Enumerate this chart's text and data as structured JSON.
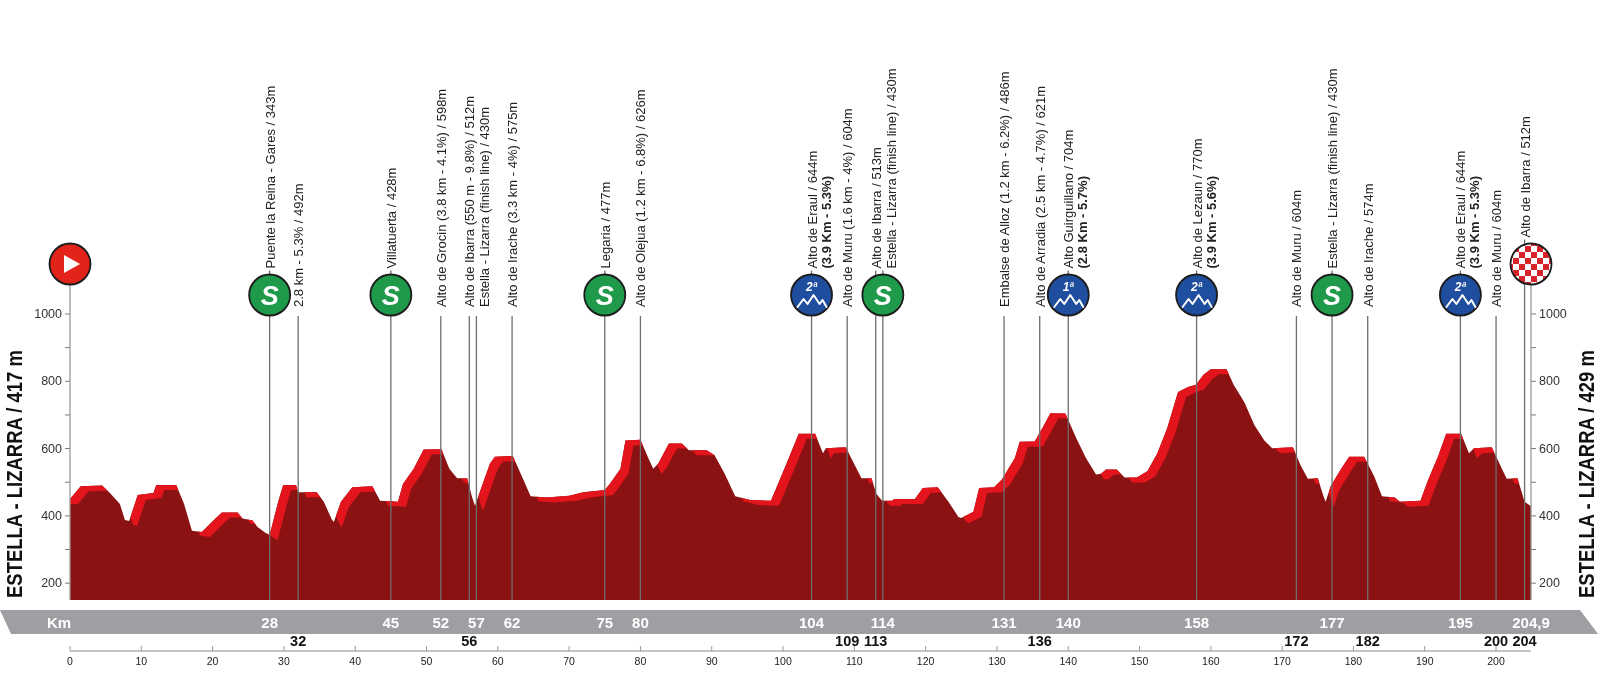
{
  "chart_data": {
    "type": "area",
    "color": "#8b1212",
    "x": [
      0,
      1.5,
      4.5,
      5.6,
      7,
      7.7,
      8.3,
      9.5,
      11.7,
      12.1,
      14.9,
      16,
      17.1,
      18.5,
      20.3,
      21.3,
      23.5,
      24.2,
      25.6,
      26.3,
      27.4,
      28,
      29.2,
      29.9,
      31.7,
      32,
      34.6,
      35.6,
      36.7,
      37,
      38,
      39.6,
      42.4,
      43.5,
      46,
      46.7,
      48.2,
      49.6,
      52.1,
      53.2,
      54.3,
      55.7,
      56.4,
      56.8,
      57.8,
      58.9,
      59.6,
      62.1,
      63.2,
      64.6,
      66.8,
      70,
      72,
      75,
      75.7,
      77.2,
      77.9,
      80,
      81.1,
      81.8,
      82.5,
      84,
      85.8,
      86.8,
      89.3,
      90.4,
      91.8,
      93.3,
      95.4,
      98.3,
      99,
      100.8,
      102.2,
      104.5,
      105.6,
      106,
      108.8,
      110.3,
      111,
      112.4,
      113.1,
      113.9,
      115.3,
      115.6,
      118.5,
      119.6,
      121.7,
      123.2,
      124.6,
      125,
      126.7,
      127.5,
      129.6,
      130.7,
      132.5,
      133.2,
      135.3,
      136.4,
      137.5,
      139.6,
      141.1,
      142.5,
      143.9,
      144.6,
      145.3,
      146.8,
      147.9,
      149.6,
      151.1,
      152.5,
      153.9,
      155.4,
      156.8,
      157.9,
      159,
      160,
      162.2,
      163.2,
      164.7,
      166.1,
      167.5,
      168.6,
      171.5,
      172.6,
      173.6,
      175,
      175.8,
      176.1,
      176.8,
      178.3,
      179.4,
      181.5,
      182.9,
      184,
      185.8,
      186.5,
      189.4,
      190.4,
      191.9,
      193,
      195.1,
      196.2,
      196.9,
      199.4,
      200.8,
      201.5,
      203,
      204,
      204.9
    ],
    "values": [
      450,
      488,
      490,
      468,
      435,
      388,
      385,
      462,
      468,
      492,
      492,
      435,
      356,
      352,
      390,
      410,
      410,
      392,
      386,
      367,
      350,
      343,
      442,
      492,
      492,
      470,
      470,
      442,
      390,
      382,
      442,
      485,
      488,
      445,
      442,
      495,
      540,
      597,
      598,
      540,
      512,
      512,
      455,
      430,
      490,
      556,
      576,
      578,
      526,
      458,
      455,
      460,
      470,
      477,
      495,
      540,
      624,
      626,
      572,
      540,
      556,
      615,
      615,
      595,
      595,
      580,
      526,
      458,
      447,
      445,
      480,
      571,
      644,
      644,
      586,
      601,
      604,
      541,
      512,
      512,
      465,
      445,
      445,
      450,
      450,
      483,
      485,
      442,
      397,
      394,
      412,
      483,
      485,
      508,
      571,
      620,
      621,
      662,
      705,
      704,
      632,
      571,
      523,
      525,
      538,
      538,
      514,
      514,
      533,
      586,
      662,
      768,
      783,
      790,
      820,
      836,
      836,
      790,
      738,
      670,
      624,
      601,
      604,
      550,
      510,
      512,
      458,
      442,
      488,
      541,
      576,
      576,
      518,
      458,
      455,
      442,
      445,
      503,
      579,
      644,
      644,
      586,
      601,
      604,
      541,
      510,
      512,
      442,
      429
    ],
    "xlim": [
      0,
      204.9
    ],
    "xticks": [
      0,
      10,
      20,
      30,
      40,
      50,
      60,
      70,
      80,
      90,
      100,
      110,
      120,
      130,
      140,
      150,
      160,
      170,
      180,
      190,
      200
    ],
    "ylim": [
      150,
      1000
    ],
    "yticks": [
      200,
      {
        "value": 300,
        "label": null
      },
      400,
      {
        "value": 500,
        "label": null
      },
      600,
      {
        "value": 700,
        "label": null
      },
      800,
      {
        "value": 900,
        "label": null
      },
      1000
    ],
    "y2lim": [
      150,
      1000
    ],
    "y2ticks": [
      200,
      {
        "value": 300,
        "label": null
      },
      400,
      {
        "value": 500,
        "label": null
      },
      600,
      {
        "value": 700,
        "label": null
      },
      800,
      {
        "value": 900,
        "label": null
      },
      1000
    ],
    "ylabel": "ESTELLA - LIZARRA / 417 m",
    "y2label": "ESTELLA - LIZARRA / 429 m",
    "x2label": "Km",
    "x2lim": [
      0,
      204.9
    ],
    "x2ticks": [
      28,
      45,
      52,
      57,
      62,
      75,
      80,
      104,
      114,
      131,
      140,
      158,
      177,
      195,
      {
        "value": 204.9,
        "label": "204,9"
      }
    ],
    "annotations": [
      {
        "text": "S",
        "x": 28
      },
      {
        "text": "S",
        "x": 45
      },
      {
        "text": "S",
        "x": 75
      },
      {
        "text": "2ª",
        "x": 104
      },
      {
        "text": "S",
        "x": 114
      },
      {
        "text": "1ª",
        "x": 140
      },
      {
        "text": "2ª",
        "x": 158
      },
      {
        "text": "S",
        "x": 177
      },
      {
        "text": "2ª",
        "x": 195
      },
      "32",
      "56",
      "109",
      "113",
      "136",
      "172",
      "182",
      "200",
      "204"
    ],
    "ref_lines": [
      {
        "axis": "x",
        "value": 28,
        "label": "Puente la Reina - Gares / 343m"
      },
      {
        "axis": "x",
        "value": 32,
        "label": "2.8 km - 5.3% / 492m"
      },
      {
        "axis": "x",
        "value": 45,
        "label": "Villatuerta / 428m"
      },
      {
        "axis": "x",
        "value": 52,
        "label": "Alto de Grocin (3.8 km - 4.1%) / 598m"
      },
      {
        "axis": "x",
        "value": 56,
        "label": "Alto de Ibarra (550 m - 9.8%) / 512m"
      },
      {
        "axis": "x",
        "value": 57,
        "label": "Estella - Lizarra (finish line) / 430m"
      },
      {
        "axis": "x",
        "value": 62,
        "label": "Alto de Irache (3.3 km - 4%) / 575m"
      },
      {
        "axis": "x",
        "value": 75,
        "label": "Legaria / 477m"
      },
      {
        "axis": "x",
        "value": 80,
        "label": "Alto de Olejua (1.2 km - 6.8%) / 626m"
      },
      {
        "axis": "x",
        "value": 104,
        "label": "Alto de Eraul / 644m\n(3.9 Km - 5.3%)"
      },
      {
        "axis": "x",
        "value": 109,
        "label": "Alto de Muru (1.6 km - 4%) / 604m"
      },
      {
        "axis": "x",
        "value": 113,
        "label": "Alto de Ibarra / 513m"
      },
      {
        "axis": "x",
        "value": 114,
        "label": "Estella - Lizarra (finish line) / 430m"
      },
      {
        "axis": "x",
        "value": 131,
        "label": "Embalse de Alloz (1.2 km - 6.2%) / 486m"
      },
      {
        "axis": "x",
        "value": 136,
        "label": "Alto de Arradia (2.5 km - 4.7%) / 621m"
      },
      {
        "axis": "x",
        "value": 140,
        "label": "Alto Guirguillano / 704m\n(2.8 Km - 5.7%)"
      },
      {
        "axis": "x",
        "value": 158,
        "label": "Alto de Lezaun / 770m\n(3.9 Km - 5.6%)"
      },
      {
        "axis": "x",
        "value": 172,
        "label": "Alto de Muru / 604m"
      },
      {
        "axis": "x",
        "value": 177,
        "label": "Estella - Lizarra (finish line) / 430m"
      },
      {
        "axis": "x",
        "value": 182,
        "label": "Alto de Irache / 574m"
      },
      {
        "axis": "x",
        "value": 195,
        "label": "Alto de Eraul / 644m\n(3.9 Km - 5.3%)"
      },
      {
        "axis": "x",
        "value": 200,
        "label": "Alto de Muru / 604m"
      },
      {
        "axis": "x",
        "value": 204,
        "label": "Alto de Ibarra / 512m"
      }
    ]
  }
}
